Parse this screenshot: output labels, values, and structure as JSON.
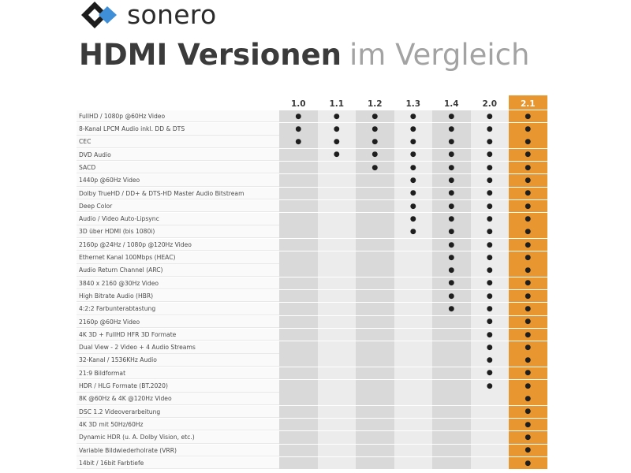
{
  "logo": {
    "icon": "sonero-diamond-logo-icon",
    "text": "sonero",
    "colors": {
      "dark": "#1c1c1c",
      "blue": "#3f8fd8"
    }
  },
  "headline": {
    "bold": "HDMI Versionen",
    "light": "im Vergleich"
  },
  "colors": {
    "highlight": "#e8962f",
    "column_dark": "#d9d9d9",
    "column_light": "#ececec"
  },
  "versions": [
    "1.0",
    "1.1",
    "1.2",
    "1.3",
    "1.4",
    "2.0",
    "2.1"
  ],
  "features": [
    {
      "label": "FullHD / 1080p @60Hz Video",
      "since": "1.0"
    },
    {
      "label": "8-Kanal LPCM Audio inkl. DD & DTS",
      "since": "1.0"
    },
    {
      "label": "CEC",
      "since": "1.0"
    },
    {
      "label": "DVD Audio",
      "since": "1.1"
    },
    {
      "label": "SACD",
      "since": "1.2"
    },
    {
      "label": "1440p @60Hz Video",
      "since": "1.3"
    },
    {
      "label": "Dolby TrueHD / DD+ & DTS-HD Master Audio Bitstream",
      "since": "1.3"
    },
    {
      "label": "Deep Color",
      "since": "1.3"
    },
    {
      "label": "Audio / Video Auto-Lipsync",
      "since": "1.3"
    },
    {
      "label": "3D über HDMI (bis 1080i)",
      "since": "1.3"
    },
    {
      "label": "2160p @24Hz / 1080p @120Hz Video",
      "since": "1.4"
    },
    {
      "label": "Ethernet Kanal 100Mbps (HEAC)",
      "since": "1.4"
    },
    {
      "label": "Audio Return Channel (ARC)",
      "since": "1.4"
    },
    {
      "label": "3840 x 2160 @30Hz Video",
      "since": "1.4"
    },
    {
      "label": "High Bitrate Audio (HBR)",
      "since": "1.4"
    },
    {
      "label": "4:2:2 Farbunterabtastung",
      "since": "1.4"
    },
    {
      "label": "2160p @60Hz Video",
      "since": "2.0"
    },
    {
      "label": "4K 3D + FullHD HFR 3D Formate",
      "since": "2.0"
    },
    {
      "label": "Dual View - 2 Video + 4 Audio Streams",
      "since": "2.0"
    },
    {
      "label": "32-Kanal / 1536KHz Audio",
      "since": "2.0"
    },
    {
      "label": "21:9 Bildformat",
      "since": "2.0"
    },
    {
      "label": "HDR / HLG Formate (BT.2020)",
      "since": "2.0"
    },
    {
      "label": "8K @60Hz & 4K @120Hz Video",
      "since": "2.1"
    },
    {
      "label": "DSC 1.2 Videoverarbeitung",
      "since": "2.1"
    },
    {
      "label": "4K 3D mit 50Hz/60Hz",
      "since": "2.1"
    },
    {
      "label": "Dynamic HDR (u. A. Dolby Vision, etc.)",
      "since": "2.1"
    },
    {
      "label": "Variable Bildwiederholrate (VRR)",
      "since": "2.1"
    },
    {
      "label": "14bit / 16bit Farbtiefe",
      "since": "2.1"
    }
  ],
  "mark": "●"
}
